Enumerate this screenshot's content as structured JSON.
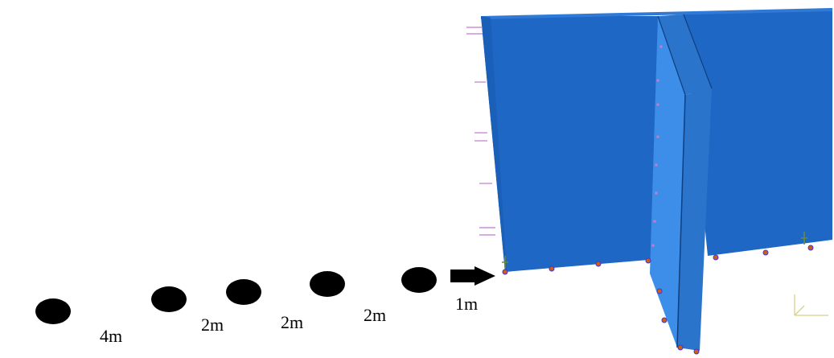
{
  "diagram": {
    "spacing_labels": [
      "4m",
      "2m",
      "2m",
      "2m",
      "1m"
    ],
    "charges_count": 5,
    "colors": {
      "wall_front": "#1f67c4",
      "wall_front_dark": "#1a5fb8",
      "wall_top": "#2f7ad6",
      "rib_face": "#3c8ee8",
      "rib_side": "#2a74cc",
      "edge": "#0e3f80",
      "charge": "#000000",
      "support_marker": "#d45a1a",
      "load_arrow": "#c07ad0",
      "axis_triad": "#d8d08a"
    }
  }
}
